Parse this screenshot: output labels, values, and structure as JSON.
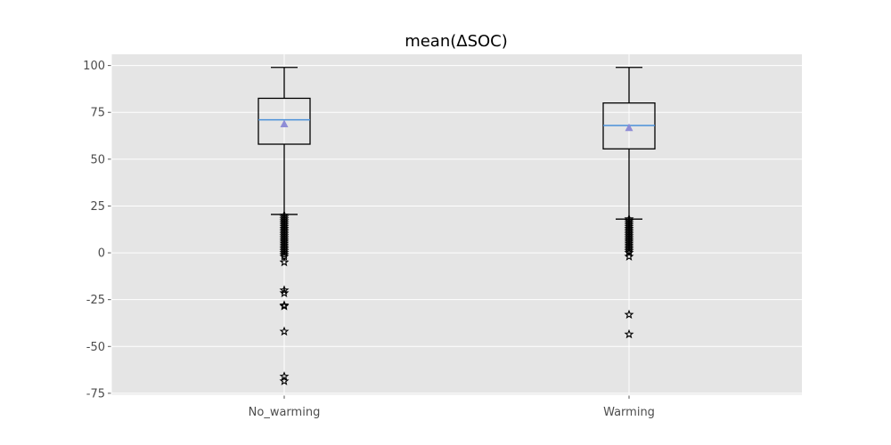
{
  "chart_data": {
    "type": "boxplot",
    "title": "mean(ΔSOC)",
    "xlabel": "",
    "ylabel": "",
    "ylim": [
      -76,
      106
    ],
    "yticks": [
      100,
      75,
      50,
      25,
      0,
      -25,
      -50,
      -75
    ],
    "ytick_labels": [
      "100",
      "75",
      "50",
      "25",
      "0",
      "-25",
      "-50",
      "-75"
    ],
    "categories": [
      "No_warming",
      "Warming"
    ],
    "grid": true,
    "series": [
      {
        "whisker_high": 99,
        "q3": 82.5,
        "median": 71,
        "mean": 68.7,
        "q1": 58,
        "whisker_low": 20.5,
        "outliers": [
          20,
          19,
          18,
          17,
          16,
          15,
          14,
          13,
          12,
          11,
          10,
          9,
          8,
          7,
          6,
          5,
          4,
          3,
          2,
          1,
          0,
          -1,
          -2,
          -5,
          -20,
          -21.5,
          -28,
          -28.5,
          -42,
          -66,
          -68.5
        ]
      },
      {
        "whisker_high": 99,
        "q3": 80,
        "median": 68,
        "mean": 66.7,
        "q1": 55.5,
        "whisker_low": 18,
        "outliers": [
          18,
          17,
          16,
          15,
          14,
          13,
          12,
          11,
          10,
          9,
          8,
          7,
          6,
          5,
          4,
          3,
          2,
          1,
          0,
          -2,
          -33,
          -43.5
        ]
      }
    ],
    "colors": {
      "plot_background": "#e5e5e5",
      "grid": "#ffffff",
      "box": "#000000",
      "median": "#4a90d9",
      "mean_marker": "#8e8cd6",
      "outlier": "#000000",
      "tick_label": "#4d4d4d"
    }
  }
}
